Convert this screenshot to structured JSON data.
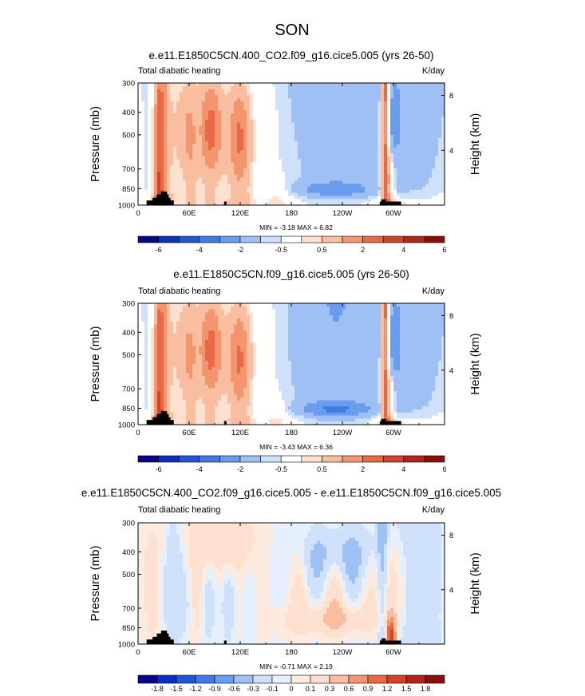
{
  "page": {
    "title": "SON"
  },
  "chart_data": [
    {
      "type": "heatmap",
      "title": "e.e11.E1850C5CN.400_CO2.f09_g16.cice5.005 (yrs 26-50)",
      "subtitle_left": "Total diabatic heating",
      "subtitle_right": "K/day",
      "ylabel": "Pressure (mb)",
      "y2label": "Height (km)",
      "x_ticks": [
        "0",
        "60E",
        "120E",
        "180",
        "120W",
        "60W"
      ],
      "y_ticks": [
        "300",
        "400",
        "500",
        "700",
        "850",
        "1000"
      ],
      "y2_ticks": [
        "8",
        "4"
      ],
      "stats": "MIN = -3.18 MAX = 6.82",
      "stats_min": -3.18,
      "stats_max": 6.82,
      "colorbar_levels": [
        "-6",
        "-4",
        "-2",
        "-0.5",
        "0.5",
        "2",
        "4",
        "6"
      ],
      "ylim": [
        1000,
        300
      ],
      "xlim": [
        0,
        360
      ]
    },
    {
      "type": "heatmap",
      "title": "e.e11.E1850C5CN.f09_g16.cice5.005 (yrs 26-50)",
      "subtitle_left": "Total diabatic heating",
      "subtitle_right": "K/day",
      "ylabel": "Pressure (mb)",
      "y2label": "Height (km)",
      "x_ticks": [
        "0",
        "60E",
        "120E",
        "180",
        "120W",
        "60W"
      ],
      "y_ticks": [
        "300",
        "400",
        "500",
        "700",
        "850",
        "1000"
      ],
      "y2_ticks": [
        "8",
        "4"
      ],
      "stats": "MIN = -3.43 MAX = 6.36",
      "stats_min": -3.43,
      "stats_max": 6.36,
      "colorbar_levels": [
        "-6",
        "-4",
        "-2",
        "-0.5",
        "0.5",
        "2",
        "4",
        "6"
      ],
      "ylim": [
        1000,
        300
      ],
      "xlim": [
        0,
        360
      ]
    },
    {
      "type": "heatmap",
      "title": "e.e11.E1850C5CN.400_CO2.f09_g16.cice5.005 - e.e11.E1850C5CN.f09_g16.cice5.005",
      "subtitle_left": "Total diabatic heating",
      "subtitle_right": "K/day",
      "ylabel": "Pressure (mb)",
      "y2label": "Height (km)",
      "x_ticks": [
        "0",
        "60E",
        "120E",
        "180",
        "120W",
        "60W"
      ],
      "y_ticks": [
        "300",
        "400",
        "500",
        "700",
        "850",
        "1000"
      ],
      "y2_ticks": [
        "8",
        "4"
      ],
      "stats": "MIN = -0.71 MAX = 2.19",
      "stats_min": -0.71,
      "stats_max": 2.19,
      "colorbar_levels": [
        "-1.8",
        "-1.5",
        "-1.2",
        "-0.9",
        "-0.6",
        "-0.3",
        "-0.1",
        "0",
        "0.1",
        "0.3",
        "0.6",
        "0.9",
        "1.2",
        "1.5",
        "1.8"
      ],
      "ylim": [
        1000,
        300
      ],
      "xlim": [
        0,
        360
      ]
    }
  ],
  "colors": {
    "abs_palette": [
      "#08058a",
      "#0c2fbf",
      "#1f56d9",
      "#3f7ae6",
      "#6a9cee",
      "#9ec0f5",
      "#cfe0fa",
      "#ffffff",
      "#fde0cf",
      "#f9bd9f",
      "#f3966f",
      "#e86a45",
      "#d2432a",
      "#b3241a",
      "#8c0e0c"
    ],
    "diff_palette": [
      "#08058a",
      "#0c2fbf",
      "#1f56d9",
      "#3f7ae6",
      "#6a9cee",
      "#9ec0f5",
      "#cfe0fa",
      "#e6f0fc",
      "#fdebe0",
      "#fde0cf",
      "#f9bd9f",
      "#f3966f",
      "#e86a45",
      "#d2432a",
      "#b3241a",
      "#8c0e0c"
    ],
    "topography": "#000000"
  }
}
